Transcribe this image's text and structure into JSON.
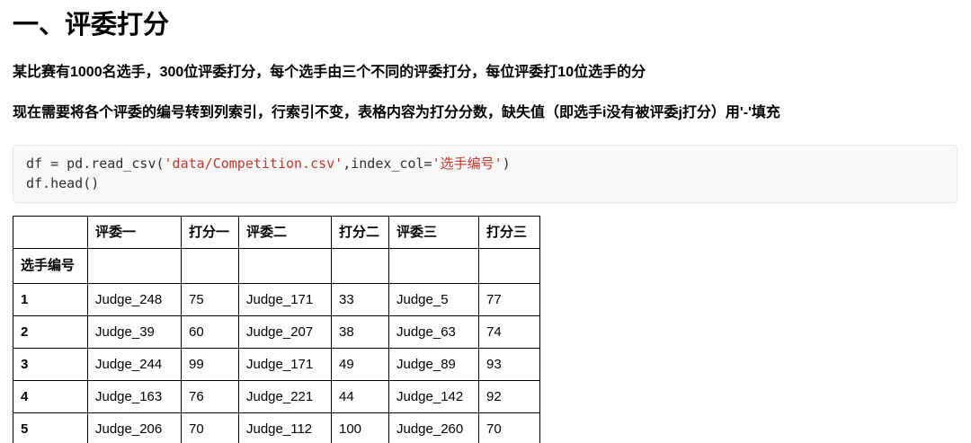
{
  "doc": {
    "title": "一、评委打分",
    "paragraphs": {
      "p1": "某比赛有1000名选手，300位评委打分，每个选手由三个不同的评委打分，每位评委打10位选手的分",
      "p2": "现在需要将各个评委的编号转到列索引，行索引不变，表格内容为打分分数，缺失值（即选手i没有被评委j打分）用'-'填充"
    }
  },
  "code": {
    "line1": {
      "seg1": "df = pd.read_csv(",
      "str1": "'data/Competition.csv'",
      "seg2": ",index_col=",
      "str2": "'选手编号'",
      "seg3": ")"
    },
    "line2": "df.head()"
  },
  "table": {
    "columns": [
      "",
      "评委一",
      "打分一",
      "评委二",
      "打分二",
      "评委三",
      "打分三"
    ],
    "index_name": "选手编号",
    "rows": [
      {
        "index": "1",
        "cells": [
          "Judge_248",
          "75",
          "Judge_171",
          "33",
          "Judge_5",
          "77"
        ]
      },
      {
        "index": "2",
        "cells": [
          "Judge_39",
          "60",
          "Judge_207",
          "38",
          "Judge_63",
          "74"
        ]
      },
      {
        "index": "3",
        "cells": [
          "Judge_244",
          "99",
          "Judge_171",
          "49",
          "Judge_89",
          "93"
        ]
      },
      {
        "index": "4",
        "cells": [
          "Judge_163",
          "76",
          "Judge_221",
          "44",
          "Judge_142",
          "92"
        ]
      },
      {
        "index": "5",
        "cells": [
          "Judge_206",
          "70",
          "Judge_112",
          "100",
          "Judge_260",
          "70"
        ]
      }
    ]
  },
  "colors": {
    "code_string": "#c0392b",
    "code_background": "#f8f8f8",
    "code_border": "#e7e7e7",
    "table_border": "#000000",
    "text": "#000000"
  }
}
